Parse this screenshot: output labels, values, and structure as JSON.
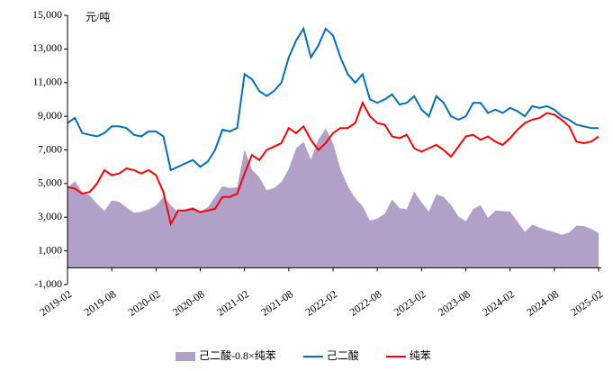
{
  "chart_data": {
    "type": "line",
    "unit_label": "元/吨",
    "legend": "bottom",
    "categories": [
      "2019-02",
      null,
      null,
      null,
      null,
      null,
      "2019-08",
      null,
      null,
      null,
      null,
      null,
      "2020-02",
      null,
      null,
      null,
      null,
      null,
      "2020-08",
      null,
      null,
      null,
      null,
      null,
      "2021-02",
      null,
      null,
      null,
      null,
      null,
      "2021-08",
      null,
      null,
      null,
      null,
      null,
      "2022-02",
      null,
      null,
      null,
      null,
      null,
      "2022-08",
      null,
      null,
      null,
      null,
      null,
      "2023-02",
      null,
      null,
      null,
      null,
      null,
      "2023-08",
      null,
      null,
      null,
      null,
      null,
      "2024-02",
      null,
      null,
      null,
      null,
      null,
      "2024-08",
      null,
      null,
      null,
      null,
      null,
      "2025-02"
    ],
    "series": [
      {
        "name": "己二酸-0.8×纯苯",
        "type": "area",
        "color": "#b1a0c7",
        "values": [
          4760,
          5140,
          4480,
          4300,
          3800,
          3360,
          4000,
          3920,
          3580,
          3260,
          3320,
          3460,
          3700,
          4200,
          3720,
          3280,
          3480,
          3600,
          3360,
          3580,
          4200,
          4840,
          4740,
          4780,
          7020,
          5840,
          5380,
          4600,
          4740,
          5080,
          5860,
          7100,
          7480,
          6420,
          7600,
          8280,
          7400,
          5860,
          4860,
          4120,
          3660,
          2800,
          2920,
          3200,
          4060,
          3540,
          3480,
          4520,
          3880,
          3320,
          4360,
          4200,
          3720,
          3040,
          2760,
          3480,
          3720,
          2960,
          3400,
          3360,
          3340,
          2740,
          2120,
          2560,
          2380,
          2240,
          2120,
          1960,
          2080,
          2500,
          2480,
          2300,
          2060
        ]
      },
      {
        "name": "己二酸",
        "type": "line",
        "color": "#0070c0",
        "values": [
          8600,
          8900,
          8000,
          7900,
          7800,
          8000,
          8400,
          8400,
          8300,
          7900,
          7800,
          8100,
          8100,
          7800,
          5800,
          6000,
          6200,
          6400,
          6000,
          6300,
          7000,
          8200,
          8100,
          8300,
          11500,
          11200,
          10500,
          10200,
          10500,
          11000,
          12500,
          13500,
          14200,
          12500,
          13200,
          14200,
          13800,
          12500,
          11500,
          11000,
          11500,
          10000,
          9800,
          10000,
          10300,
          9700,
          9800,
          10200,
          9400,
          9000,
          10200,
          9800,
          9000,
          8800,
          9000,
          9800,
          9800,
          9200,
          9400,
          9200,
          9500,
          9300,
          9000,
          9600,
          9500,
          9600,
          9400,
          9000,
          8800,
          8500,
          8400,
          8300,
          8300
        ]
      },
      {
        "name": "纯苯",
        "type": "line",
        "color": "#ff0000",
        "values": [
          4800,
          4700,
          4400,
          4500,
          5000,
          5800,
          5500,
          5600,
          5900,
          5800,
          5600,
          5800,
          5500,
          4500,
          2600,
          3400,
          3400,
          3500,
          3300,
          3400,
          3500,
          4200,
          4200,
          4400,
          5600,
          6700,
          6400,
          7000,
          7200,
          7400,
          8300,
          8000,
          8400,
          7600,
          7000,
          7400,
          8000,
          8300,
          8300,
          8600,
          9800,
          9000,
          8600,
          8500,
          7800,
          7700,
          7900,
          7100,
          6900,
          7100,
          7300,
          7000,
          6600,
          7200,
          7800,
          7900,
          7600,
          7800,
          7500,
          7300,
          7700,
          8200,
          8600,
          8800,
          8900,
          9200,
          9100,
          8800,
          8400,
          7500,
          7400,
          7500,
          7800
        ]
      }
    ],
    "ylim": [
      -1000,
      15000
    ],
    "yticks": [
      {
        "value": -1000,
        "label": "-1,000"
      },
      {
        "value": 1000,
        "label": "1,000"
      },
      {
        "value": 3000,
        "label": "3,000"
      },
      {
        "value": 5000,
        "label": "5,000"
      },
      {
        "value": 7000,
        "label": "7,000"
      },
      {
        "value": 9000,
        "label": "9,000"
      },
      {
        "value": 11000,
        "label": "11,000"
      },
      {
        "value": 13000,
        "label": "13,000"
      },
      {
        "value": 15000,
        "label": "15,000"
      }
    ]
  }
}
